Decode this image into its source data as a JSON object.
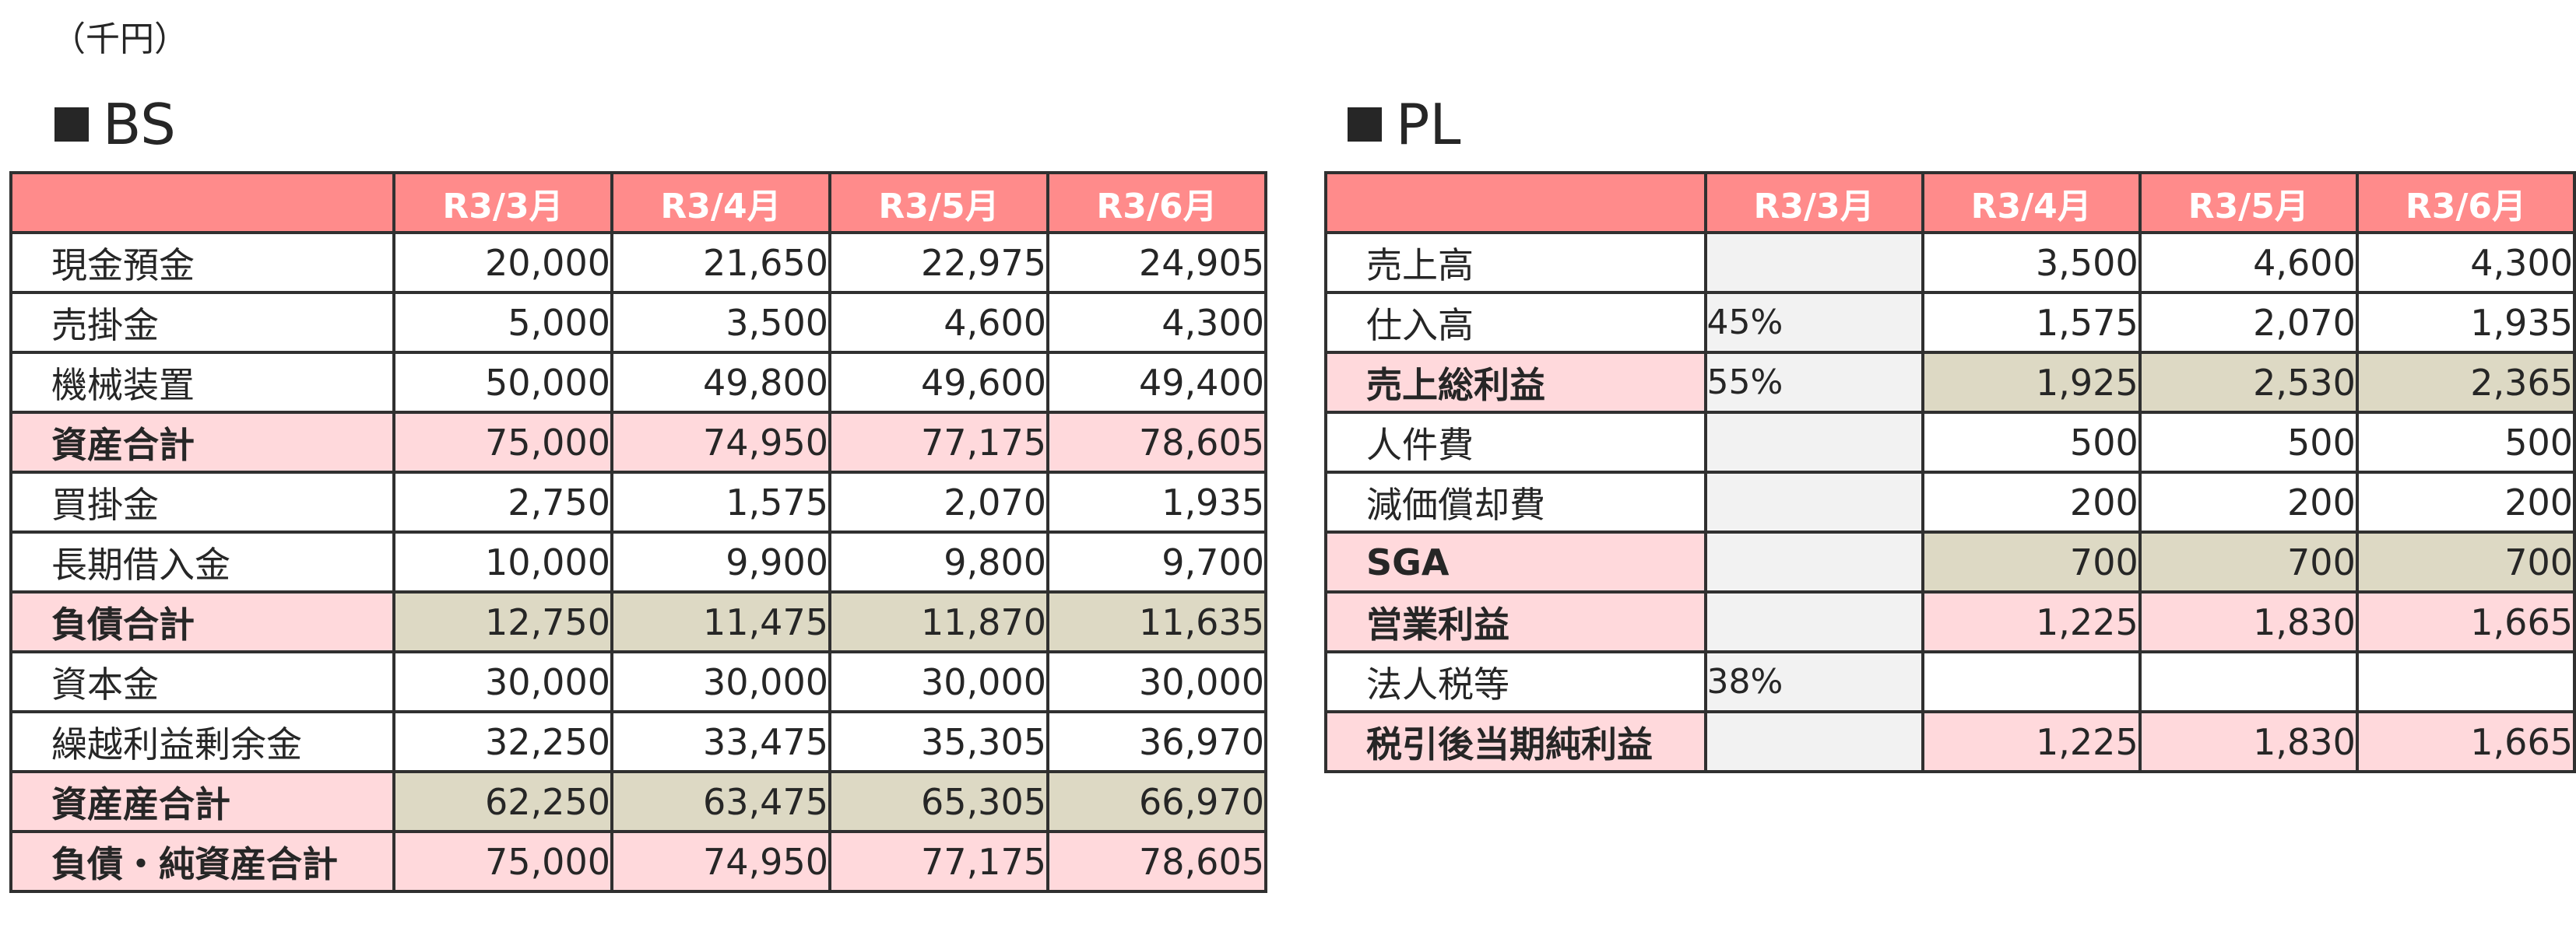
{
  "unit_label": "（千円）",
  "bs": {
    "title": "BS",
    "columns": [
      "",
      "R3/3月",
      "R3/4月",
      "R3/5月",
      "R3/6月"
    ],
    "rows": [
      {
        "label": "現金預金",
        "values": [
          "20,000",
          "21,650",
          "22,975",
          "24,905"
        ],
        "style": "plain"
      },
      {
        "label": "売掛金",
        "values": [
          "5,000",
          "3,500",
          "4,600",
          "4,300"
        ],
        "style": "plain"
      },
      {
        "label": "機械装置",
        "values": [
          "50,000",
          "49,800",
          "49,600",
          "49,400"
        ],
        "style": "plain"
      },
      {
        "label": "資産合計",
        "values": [
          "75,000",
          "74,950",
          "77,175",
          "78,605"
        ],
        "style": "pink"
      },
      {
        "label": "買掛金",
        "values": [
          "2,750",
          "1,575",
          "2,070",
          "1,935"
        ],
        "style": "plain"
      },
      {
        "label": "長期借入金",
        "values": [
          "10,000",
          "9,900",
          "9,800",
          "9,700"
        ],
        "style": "plain"
      },
      {
        "label": "負債合計",
        "values": [
          "12,750",
          "11,475",
          "11,870",
          "11,635"
        ],
        "style": "olive"
      },
      {
        "label": "資本金",
        "values": [
          "30,000",
          "30,000",
          "30,000",
          "30,000"
        ],
        "style": "plain"
      },
      {
        "label": "繰越利益剰余金",
        "values": [
          "32,250",
          "33,475",
          "35,305",
          "36,970"
        ],
        "style": "plain"
      },
      {
        "label": "資産産合計",
        "values": [
          "62,250",
          "63,475",
          "65,305",
          "66,970"
        ],
        "style": "olive"
      },
      {
        "label": "負債・純資産合計",
        "values": [
          "75,000",
          "74,950",
          "77,175",
          "78,605"
        ],
        "style": "pink"
      }
    ]
  },
  "pl": {
    "title": "PL",
    "columns": [
      "",
      "R3/3月",
      "R3/4月",
      "R3/5月",
      "R3/6月"
    ],
    "rows": [
      {
        "label": "売上高",
        "rate": "",
        "values": [
          "3,500",
          "4,600",
          "4,300"
        ],
        "style": "plain"
      },
      {
        "label": "仕入高",
        "rate": "45%",
        "values": [
          "1,575",
          "2,070",
          "1,935"
        ],
        "style": "plain"
      },
      {
        "label": "売上総利益",
        "rate": "55%",
        "values": [
          "1,925",
          "2,530",
          "2,365"
        ],
        "style": "olive"
      },
      {
        "label": "人件費",
        "rate": "",
        "values": [
          "500",
          "500",
          "500"
        ],
        "style": "plain"
      },
      {
        "label": "減価償却費",
        "rate": "",
        "values": [
          "200",
          "200",
          "200"
        ],
        "style": "plain"
      },
      {
        "label": "SGA",
        "rate": "",
        "values": [
          "700",
          "700",
          "700"
        ],
        "style": "olive"
      },
      {
        "label": "営業利益",
        "rate": "",
        "values": [
          "1,225",
          "1,830",
          "1,665"
        ],
        "style": "pink"
      },
      {
        "label": "法人税等",
        "rate": "38%",
        "values": [
          "",
          "",
          ""
        ],
        "style": "plain"
      },
      {
        "label": "税引後当期純利益",
        "rate": "",
        "values": [
          "1,225",
          "1,830",
          "1,665"
        ],
        "style": "pink"
      }
    ]
  },
  "colors": {
    "header_fill": "#ff8b8b",
    "highlight_pink": "#ffd9dc",
    "highlight_olive": "#ddd9c4",
    "rate_cell_grey": "#f2f2f2",
    "border": "#303030"
  }
}
